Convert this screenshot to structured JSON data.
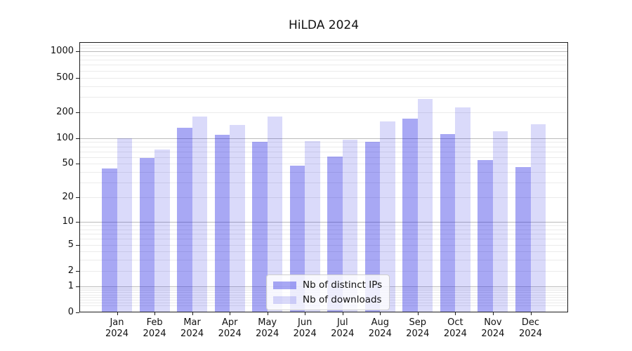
{
  "title": "HiLDA 2024",
  "chart_data": {
    "type": "bar",
    "title": "HiLDA 2024",
    "categories": [
      "Jan",
      "Feb",
      "Mar",
      "Apr",
      "May",
      "Jun",
      "Jul",
      "Aug",
      "Sep",
      "Oct",
      "Nov",
      "Dec"
    ],
    "category_year": "2024",
    "series": [
      {
        "name": "Nb of distinct IPs",
        "color": "#1b1be2",
        "alpha": 0.38,
        "values": [
          44,
          59,
          131,
          110,
          91,
          48,
          61,
          90,
          168,
          112,
          55,
          46
        ]
      },
      {
        "name": "Nb of downloads",
        "color": "#1b1be2",
        "alpha": 0.16,
        "values": [
          100,
          74,
          179,
          142,
          179,
          93,
          96,
          157,
          282,
          228,
          119,
          145
        ]
      }
    ],
    "yscale": "log1p",
    "yticks": [
      0,
      1,
      2,
      5,
      10,
      20,
      50,
      100,
      200,
      500,
      1000
    ],
    "ylim": [
      0,
      1280
    ],
    "grid": true,
    "grid_major_color": "#bbbbbb",
    "grid_minor_color": "#ebebeb",
    "legend_position": "lower center"
  }
}
